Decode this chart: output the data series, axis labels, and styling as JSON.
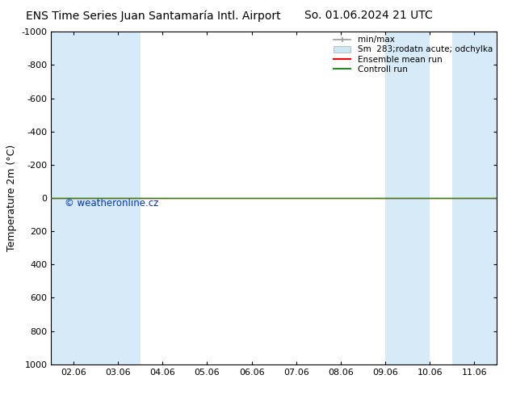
{
  "title_left": "ENS Time Series Juan Santamaría Intl. Airport",
  "title_right": "So. 01.06.2024 21 UTC",
  "ylabel": "Temperature 2m (°C)",
  "ylim_bottom": 1000,
  "ylim_top": -1000,
  "yticks": [
    -1000,
    -800,
    -600,
    -400,
    -200,
    0,
    200,
    400,
    600,
    800,
    1000
  ],
  "xtick_labels": [
    "02.06",
    "03.06",
    "04.06",
    "05.06",
    "06.06",
    "07.06",
    "08.06",
    "09.06",
    "10.06",
    "11.06"
  ],
  "xtick_positions": [
    0,
    1,
    2,
    3,
    4,
    5,
    6,
    7,
    8,
    9
  ],
  "xmin": -0.5,
  "xmax": 9.5,
  "bg_color": "#ffffff",
  "plot_bg_color": "#ffffff",
  "shaded_bands": [
    {
      "xmin": -0.5,
      "xmax": 0.5,
      "color": "#d6eaf8"
    },
    {
      "xmin": 0.5,
      "xmax": 1.5,
      "color": "#d6eaf8"
    },
    {
      "xmin": 7.0,
      "xmax": 8.0,
      "color": "#d6eaf8"
    },
    {
      "xmin": 8.5,
      "xmax": 9.5,
      "color": "#d6eaf8"
    }
  ],
  "ensemble_mean_y": 0,
  "control_run_y": 0,
  "ensemble_mean_color": "#ff0000",
  "control_run_color": "#228b22",
  "copyright_text": "© weatheronline.cz",
  "copyright_color": "#0033cc",
  "legend_items": [
    {
      "label": "min/max",
      "color": "#999999",
      "lw": 1.2,
      "type": "line_with_caps"
    },
    {
      "label": "Sm  283;rodatn acute; odchylka",
      "color": "#cde6f5",
      "border_color": "#aaaaaa",
      "type": "patch"
    },
    {
      "label": "Ensemble mean run",
      "color": "#ff0000",
      "lw": 1.5,
      "type": "line"
    },
    {
      "label": "Controll run",
      "color": "#228b22",
      "lw": 1.5,
      "type": "line"
    }
  ],
  "title_fontsize": 10,
  "ylabel_fontsize": 9,
  "tick_fontsize": 8,
  "legend_fontsize": 7.5
}
